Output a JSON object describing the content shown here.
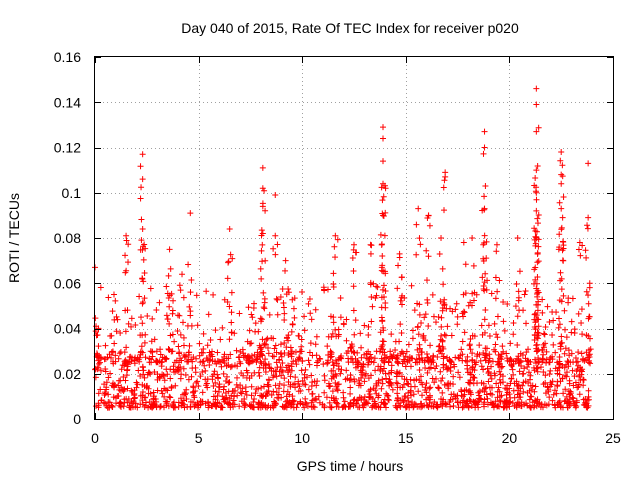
{
  "chart_data": {
    "type": "scatter",
    "title": "Day 040 of 2015, Rate Of TEC Index for receiver p020",
    "xlabel": "GPS time / hours",
    "ylabel": "ROTI / TECUs",
    "xlim": [
      0,
      25
    ],
    "ylim": [
      0,
      0.16
    ],
    "xticks": [
      0,
      5,
      10,
      15,
      20,
      25
    ],
    "yticks": [
      0,
      0.02,
      0.04,
      0.06,
      0.08,
      0.1,
      0.12,
      0.14,
      0.16
    ],
    "xtick_labels": [
      "0",
      "5",
      "10",
      "15",
      "20",
      "25"
    ],
    "ytick_labels": [
      "0",
      "0.02",
      "0.04",
      "0.06",
      "0.08",
      "0.1",
      "0.12",
      "0.14",
      "0.16"
    ],
    "grid": true,
    "marker": "+",
    "color": "#ff0000",
    "data_range_hours": [
      0,
      23.9
    ],
    "baseline_band": [
      0.005,
      0.03
    ],
    "peaks": [
      {
        "x": 0.0,
        "y": 0.067
      },
      {
        "x": 0.05,
        "y": 0.041
      },
      {
        "x": 1.5,
        "y": 0.081
      },
      {
        "x": 2.3,
        "y": 0.117
      },
      {
        "x": 2.3,
        "y": 0.106
      },
      {
        "x": 2.3,
        "y": 0.084
      },
      {
        "x": 3.6,
        "y": 0.075
      },
      {
        "x": 4.2,
        "y": 0.064
      },
      {
        "x": 4.6,
        "y": 0.091
      },
      {
        "x": 6.5,
        "y": 0.084
      },
      {
        "x": 8.1,
        "y": 0.111
      },
      {
        "x": 8.1,
        "y": 0.102
      },
      {
        "x": 8.1,
        "y": 0.094
      },
      {
        "x": 8.1,
        "y": 0.082
      },
      {
        "x": 8.7,
        "y": 0.099
      },
      {
        "x": 8.7,
        "y": 0.081
      },
      {
        "x": 9.2,
        "y": 0.07
      },
      {
        "x": 11.6,
        "y": 0.081
      },
      {
        "x": 12.5,
        "y": 0.077
      },
      {
        "x": 13.3,
        "y": 0.077
      },
      {
        "x": 13.9,
        "y": 0.129
      },
      {
        "x": 13.9,
        "y": 0.124
      },
      {
        "x": 13.9,
        "y": 0.114
      },
      {
        "x": 13.9,
        "y": 0.104
      },
      {
        "x": 13.9,
        "y": 0.09
      },
      {
        "x": 14.7,
        "y": 0.073
      },
      {
        "x": 15.6,
        "y": 0.093
      },
      {
        "x": 16.1,
        "y": 0.09
      },
      {
        "x": 16.7,
        "y": 0.08
      },
      {
        "x": 16.9,
        "y": 0.109
      },
      {
        "x": 16.9,
        "y": 0.107
      },
      {
        "x": 17.8,
        "y": 0.078
      },
      {
        "x": 18.2,
        "y": 0.08
      },
      {
        "x": 18.8,
        "y": 0.127
      },
      {
        "x": 18.8,
        "y": 0.12
      },
      {
        "x": 18.8,
        "y": 0.093
      },
      {
        "x": 19.4,
        "y": 0.077
      },
      {
        "x": 20.4,
        "y": 0.08
      },
      {
        "x": 21.3,
        "y": 0.146
      },
      {
        "x": 21.3,
        "y": 0.139
      },
      {
        "x": 21.3,
        "y": 0.127
      },
      {
        "x": 21.3,
        "y": 0.11
      },
      {
        "x": 21.3,
        "y": 0.1
      },
      {
        "x": 21.3,
        "y": 0.092
      },
      {
        "x": 21.3,
        "y": 0.08
      },
      {
        "x": 22.5,
        "y": 0.118
      },
      {
        "x": 22.5,
        "y": 0.108
      },
      {
        "x": 22.5,
        "y": 0.104
      },
      {
        "x": 22.5,
        "y": 0.093
      },
      {
        "x": 23.4,
        "y": 0.078
      },
      {
        "x": 23.8,
        "y": 0.113
      },
      {
        "x": 23.8,
        "y": 0.089
      }
    ]
  }
}
